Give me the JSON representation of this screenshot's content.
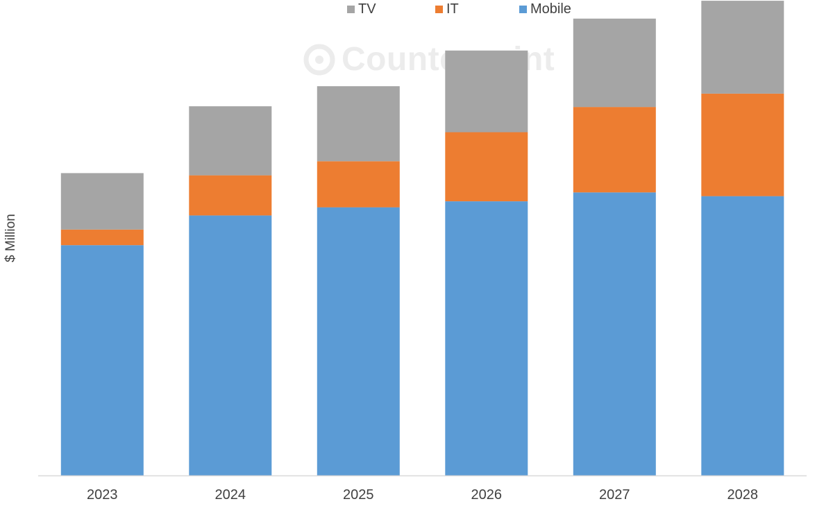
{
  "chart_data": {
    "type": "bar",
    "stacked": true,
    "title": "",
    "xlabel": "",
    "ylabel": "$ Million",
    "ylim": [
      0,
      640
    ],
    "categories": [
      "2023",
      "2024",
      "2025",
      "2026",
      "2027",
      "2028"
    ],
    "series": [
      {
        "name": "Mobile",
        "color": "#5B9BD5",
        "values": [
          310,
          350,
          361,
          369,
          381,
          376
        ]
      },
      {
        "name": "IT",
        "color": "#ED7D31",
        "values": [
          21,
          54,
          62,
          93,
          115,
          138
        ]
      },
      {
        "name": "TV",
        "color": "#A5A5A5",
        "values": [
          76,
          93,
          101,
          110,
          119,
          125
        ]
      }
    ],
    "legend": {
      "position": "top",
      "order": [
        "TV",
        "IT",
        "Mobile"
      ]
    },
    "grid": false,
    "axis_color": "#D9D9D9",
    "watermark": "Counterpoint"
  }
}
